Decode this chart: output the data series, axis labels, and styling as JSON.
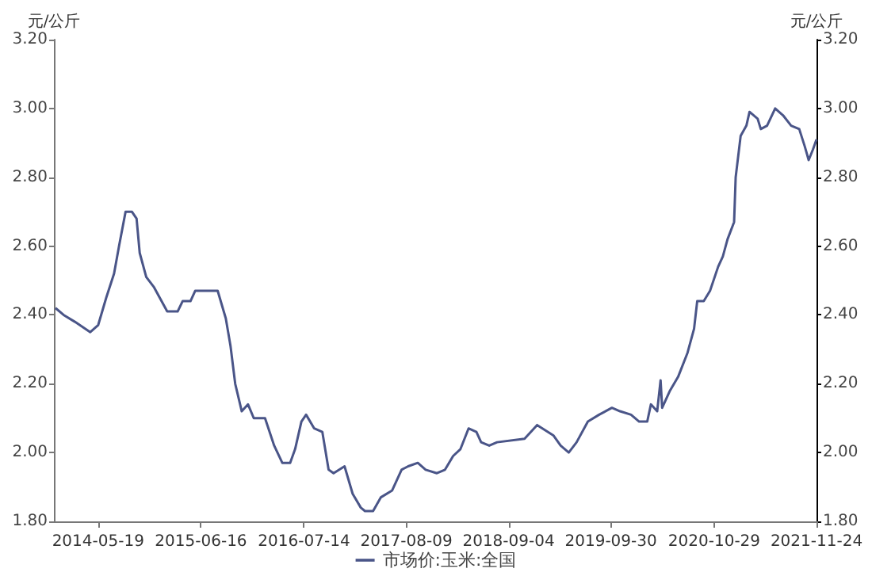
{
  "chart_data": {
    "type": "line",
    "ylabel": "元/公斤",
    "y2label": "元/公斤",
    "x": [
      "2013-12-07",
      "2014-01-07",
      "2014-02-19",
      "2014-04-19",
      "2014-05-19",
      "2014-06-19",
      "2014-07-19",
      "2014-08-07",
      "2014-09-01",
      "2014-09-25",
      "2014-10-13",
      "2014-10-25",
      "2014-11-19",
      "2014-12-19",
      "2015-02-07",
      "2015-03-19",
      "2015-04-07",
      "2015-05-07",
      "2015-05-25",
      "2015-06-25",
      "2015-08-19",
      "2015-09-19",
      "2015-10-07",
      "2015-10-25",
      "2015-11-19",
      "2015-12-13",
      "2016-01-04",
      "2016-02-16",
      "2016-03-22",
      "2016-04-22",
      "2016-05-22",
      "2016-06-10",
      "2016-07-04",
      "2016-07-22",
      "2016-08-22",
      "2016-09-22",
      "2016-10-16",
      "2016-11-04",
      "2016-12-16",
      "2017-01-16",
      "2017-02-16",
      "2017-03-04",
      "2017-04-04",
      "2017-05-04",
      "2017-06-16",
      "2017-07-22",
      "2017-08-16",
      "2017-09-22",
      "2017-10-22",
      "2017-12-04",
      "2018-01-04",
      "2018-02-04",
      "2018-03-04",
      "2018-04-04",
      "2018-05-04",
      "2018-05-22",
      "2018-06-22",
      "2018-07-22",
      "2018-11-04",
      "2018-12-22",
      "2019-02-22",
      "2019-03-22",
      "2019-04-22",
      "2019-05-22",
      "2019-07-04",
      "2019-08-16",
      "2019-10-04",
      "2019-11-04",
      "2019-12-16",
      "2020-01-16",
      "2020-02-16",
      "2020-03-01",
      "2020-03-25",
      "2020-04-07",
      "2020-04-13",
      "2020-05-13",
      "2020-06-13",
      "2020-07-19",
      "2020-08-13",
      "2020-08-25",
      "2020-09-19",
      "2020-10-13",
      "2020-11-13",
      "2020-12-01",
      "2020-12-19",
      "2021-01-13",
      "2021-01-19",
      "2021-02-07",
      "2021-03-01",
      "2021-03-13",
      "2021-04-13",
      "2021-04-25",
      "2021-05-19",
      "2021-06-19",
      "2021-07-19",
      "2021-08-19",
      "2021-09-19",
      "2021-10-10",
      "2021-10-25",
      "2021-11-10",
      "2021-11-24"
    ],
    "series": [
      {
        "name": "市场价:玉米:全国",
        "color": "#4a5588",
        "values": [
          2.42,
          2.4,
          2.38,
          2.35,
          2.37,
          2.45,
          2.52,
          2.6,
          2.7,
          2.7,
          2.68,
          2.58,
          2.51,
          2.48,
          2.41,
          2.41,
          2.44,
          2.44,
          2.47,
          2.47,
          2.47,
          2.39,
          2.31,
          2.2,
          2.12,
          2.14,
          2.1,
          2.1,
          2.02,
          1.97,
          1.97,
          2.01,
          2.09,
          2.11,
          2.07,
          2.06,
          1.95,
          1.94,
          1.96,
          1.88,
          1.84,
          1.83,
          1.83,
          1.87,
          1.89,
          1.95,
          1.96,
          1.97,
          1.95,
          1.94,
          1.95,
          1.99,
          2.01,
          2.07,
          2.06,
          2.03,
          2.02,
          2.03,
          2.04,
          2.08,
          2.05,
          2.02,
          2.0,
          2.03,
          2.09,
          2.11,
          2.13,
          2.12,
          2.11,
          2.09,
          2.09,
          2.14,
          2.12,
          2.21,
          2.13,
          2.18,
          2.22,
          2.29,
          2.36,
          2.44,
          2.44,
          2.47,
          2.54,
          2.57,
          2.62,
          2.67,
          2.8,
          2.92,
          2.95,
          2.99,
          2.97,
          2.94,
          2.95,
          3.0,
          2.98,
          2.95,
          2.94,
          2.89,
          2.85,
          2.88,
          2.91
        ]
      }
    ],
    "xlim": [
      "2013-12-01",
      "2021-11-24"
    ],
    "xticks": [
      "2014-05-19",
      "2015-06-16",
      "2016-07-14",
      "2017-08-09",
      "2018-09-04",
      "2019-09-30",
      "2020-10-29",
      "2021-11-24"
    ],
    "ylim": [
      1.8,
      3.2
    ],
    "yticks": [
      {
        "value": 1.8,
        "label": "1.80"
      },
      {
        "value": 2.0,
        "label": "2.00"
      },
      {
        "value": 2.2,
        "label": "2.20"
      },
      {
        "value": 2.4,
        "label": "2.40"
      },
      {
        "value": 2.6,
        "label": "2.60"
      },
      {
        "value": 2.8,
        "label": "2.80"
      },
      {
        "value": 3.0,
        "label": "3.00"
      },
      {
        "value": 3.2,
        "label": "3.20"
      }
    ],
    "y2lim": [
      1.8,
      3.2
    ],
    "y2ticks": [
      {
        "value": 1.8,
        "label": "1.80"
      },
      {
        "value": 2.0,
        "label": "2.00"
      },
      {
        "value": 2.2,
        "label": "2.20"
      },
      {
        "value": 2.4,
        "label": "2.40"
      },
      {
        "value": 2.6,
        "label": "2.60"
      },
      {
        "value": 2.8,
        "label": "2.80"
      },
      {
        "value": 3.0,
        "label": "3.00"
      },
      {
        "value": 3.2,
        "label": "3.20"
      }
    ],
    "grid": false,
    "legend": "bottom",
    "marker": "none",
    "line_style": "solid"
  }
}
